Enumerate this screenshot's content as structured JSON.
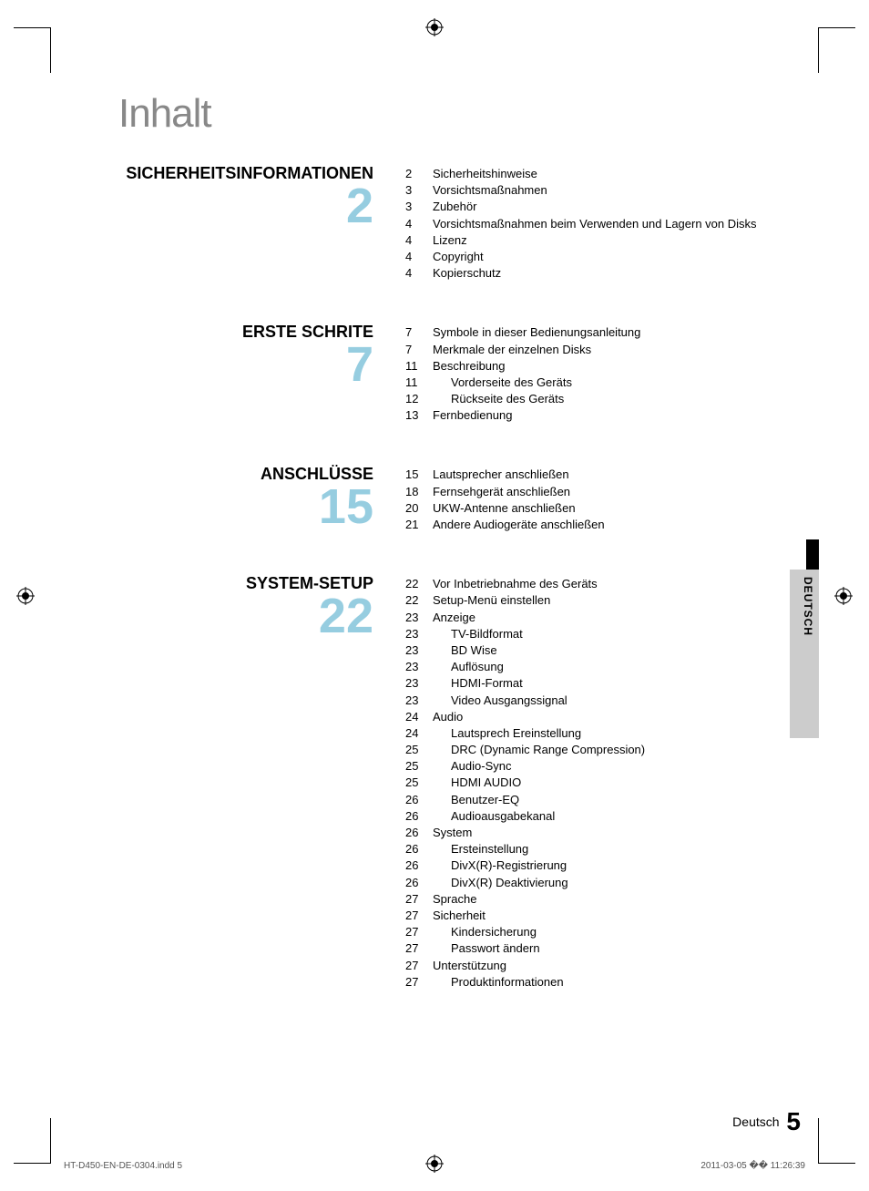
{
  "title": "Inhalt",
  "accent_color": "#96cde0",
  "sections": [
    {
      "heading": "SICHERHEITSINFORMATIONEN",
      "number": "2",
      "entries": [
        {
          "page": "2",
          "label": "Sicherheitshinweise",
          "indent": false
        },
        {
          "page": "3",
          "label": "Vorsichtsmaßnahmen",
          "indent": false
        },
        {
          "page": "3",
          "label": "Zubehör",
          "indent": false
        },
        {
          "page": "4",
          "label": "Vorsichtsmaßnahmen beim Verwenden und Lagern von Disks",
          "indent": false
        },
        {
          "page": "4",
          "label": "Lizenz",
          "indent": false
        },
        {
          "page": "4",
          "label": "Copyright",
          "indent": false
        },
        {
          "page": "4",
          "label": "Kopierschutz",
          "indent": false
        }
      ]
    },
    {
      "heading": "ERSTE SCHRITE",
      "number": "7",
      "entries": [
        {
          "page": "7",
          "label": "Symbole in dieser Bedienungsanleitung",
          "indent": false
        },
        {
          "page": "7",
          "label": "Merkmale der einzelnen Disks",
          "indent": false
        },
        {
          "page": "11",
          "label": "Beschreibung",
          "indent": false
        },
        {
          "page": "11",
          "label": "Vorderseite des Geräts",
          "indent": true
        },
        {
          "page": "12",
          "label": "Rückseite des Geräts",
          "indent": true
        },
        {
          "page": "13",
          "label": "Fernbedienung",
          "indent": false
        }
      ]
    },
    {
      "heading": "ANSCHLÜSSE",
      "number": "15",
      "entries": [
        {
          "page": "15",
          "label": "Lautsprecher anschließen",
          "indent": false
        },
        {
          "page": "18",
          "label": "Fernsehgerät anschließen",
          "indent": false
        },
        {
          "page": "20",
          "label": "UKW-Antenne anschließen",
          "indent": false
        },
        {
          "page": "21",
          "label": "Andere Audiogeräte anschließen",
          "indent": false
        }
      ]
    },
    {
      "heading": "SYSTEM-SETUP",
      "number": "22",
      "entries": [
        {
          "page": "22",
          "label": "Vor Inbetriebnahme des Geräts",
          "indent": false
        },
        {
          "page": "22",
          "label": "Setup-Menü einstellen",
          "indent": false
        },
        {
          "page": "23",
          "label": "Anzeige",
          "indent": false
        },
        {
          "page": "23",
          "label": "TV-Bildformat",
          "indent": true
        },
        {
          "page": "23",
          "label": "BD Wise",
          "indent": true
        },
        {
          "page": "23",
          "label": "Auflösung",
          "indent": true
        },
        {
          "page": "23",
          "label": "HDMI-Format",
          "indent": true
        },
        {
          "page": "23",
          "label": "Video Ausgangssignal",
          "indent": true
        },
        {
          "page": "24",
          "label": "Audio",
          "indent": false
        },
        {
          "page": "24",
          "label": "Lautsprech Ereinstellung",
          "indent": true
        },
        {
          "page": "25",
          "label": "DRC (Dynamic Range Compression)",
          "indent": true
        },
        {
          "page": "25",
          "label": "Audio-Sync",
          "indent": true
        },
        {
          "page": "25",
          "label": "HDMI AUDIO",
          "indent": true
        },
        {
          "page": "26",
          "label": "Benutzer-EQ",
          "indent": true
        },
        {
          "page": "26",
          "label": "Audioausgabekanal",
          "indent": true
        },
        {
          "page": "26",
          "label": "System",
          "indent": false
        },
        {
          "page": "26",
          "label": "Ersteinstellung",
          "indent": true
        },
        {
          "page": "26",
          "label": "DivX(R)-Registrierung",
          "indent": true
        },
        {
          "page": "26",
          "label": "DivX(R) Deaktivierung",
          "indent": true
        },
        {
          "page": "27",
          "label": "Sprache",
          "indent": false
        },
        {
          "page": "27",
          "label": "Sicherheit",
          "indent": false
        },
        {
          "page": "27",
          "label": "Kindersicherung",
          "indent": true
        },
        {
          "page": "27",
          "label": "Passwort ändern",
          "indent": true
        },
        {
          "page": "27",
          "label": "Unterstützung",
          "indent": false
        },
        {
          "page": "27",
          "label": "Produktinformationen",
          "indent": true
        }
      ]
    }
  ],
  "side_tab": "DEUTSCH",
  "footer": {
    "lang_label": "Deutsch",
    "page_number": "5",
    "file": "HT-D450-EN-DE-0304.indd   5",
    "timestamp": "2011-03-05   �� 11:26:39"
  }
}
